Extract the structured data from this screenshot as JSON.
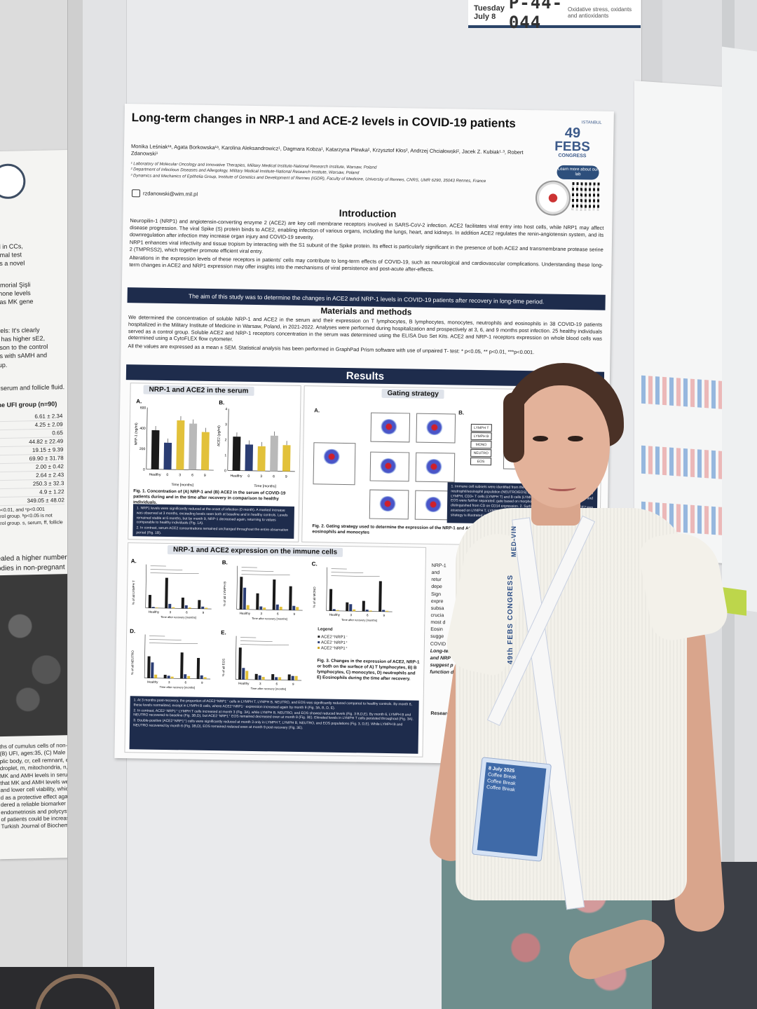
{
  "poster": {
    "title": "Long-term changes in NRP-1 and ACE-2 levels in COVID-19 patients",
    "authors": "Monika Leśniak¹ᵃ, Agata Borkowska¹ᵃ, Karolina Aleksandrowicz¹, Dagmara Kobza¹, Katarzyna Plewka², Krzysztof Kłos², Andrzej Chciałowski², Jacek Z. Kubiak¹·³, Robert Zdanowski¹",
    "affiliations": [
      "¹ Laboratory of Molecular Oncology and Innovative Therapies, Military Medical Institute-National Research Institute, Warsaw, Poland",
      "² Department of Infectious Diseases and Allergology, Military Medical Institute-National Research Institute, Warsaw, Poland",
      "³ Dynamics and Mechanics of Epithelia Group, Institute of Genetics and Development of Rennes (IGDR), Faculty of Medicine, University of Rennes, CNRS, UMR 6290, 35043 Rennes, France"
    ],
    "email": "rzdanowski@wim.mil.pl",
    "congress_num": "49",
    "congress_word": "FEBS",
    "congress_sub": "CONGRESS",
    "congress_city": "ISTANBUL",
    "learn_more": "Learn more about our lab",
    "intro_heading": "Introduction",
    "intro_p1": "Neuropilin-1 (NRP1) and angiotensin-converting enzyme 2 (ACE2) are key cell membrane receptors involved in SARS-CoV-2 infection. ACE2 facilitates viral entry into host cells, while NRP1 may affect disease progression. The viral Spike (S) protein binds to ACE2, enabling infection of various organs, including the lungs, heart, and kidneys. In addition ACE2 regulates the renin-angiotensin system, and its downregulation after infection may increase organ injury and COVID-19 severity.",
    "intro_p2": "NRP1 enhances viral infectivity and tissue tropism by interacting with the S1 subunit of the Spike protein. Its effect is particularly significant in the presence of both ACE2 and transmembrane protease serine 2 (TMPRSS2), which together promote efficient viral entry.",
    "intro_p3": "Alterations in the expression levels of these receptors in patients' cells may contribute to long-term effects of COVID-19, such as neurological and cardiovascular complications. Understanding these long-term changes in ACE2 and NRP1 expression may offer insights into the mechanisms of viral persistence and post-acute after-effects.",
    "aim": "The aim of this study was to determine the changes in ACE2 and NRP-1 levels in COVID-19 patients after recovery in long-time period.",
    "methods_heading": "Materials and methods",
    "methods_p1": "We determined the concentration of soluble NRP-1 and ACE2 in the serum and their expression on T lymphocytes, B lymphocytes, monocytes, neutrophils and eosinophils in 38 COVID-19 patients hospitalized in the Military Institute of Medicine in Warsaw, Poland, in 2021-2022. Analyses were performed during hospitalization and prospectively at 3, 6, and 9 months post infection. 25 healthy individuals served as a control group. Soluble ACE2 and NRP-1 receptors concentration in the serum was determined using the ELISA Duo Set Kits. ACE2 and NRP-1 receptors expression on whole blood cells was determined using a CytoFLEX flow cytometer.",
    "methods_p2": "All the values are expressed as a mean ± SEM. Statistical analysis has been performed in GraphPad Prism software with use of unpaired T- test: * p<0.05, ** p<0.01, ***p<0.001.",
    "results_heading": "Results",
    "serum_title": "NRP-1 and ACE2 in the serum",
    "serum_a": "A.",
    "serum_b": "B.",
    "serum_ylabel_a": "NRP-1 (ng/ml)",
    "serum_ylabel_b": "ACE2 (pg/ml)",
    "serum_xlabel": "Time [months]",
    "serum_ticks": [
      "Healthy",
      "0",
      "3",
      "6",
      "9"
    ],
    "serum_caption": "Fig. 1. Concentration of (A) NRP-1 and (B) ACE2 in the serum of COVID-19 patients during and in the time after recovery in comparison to healthy individuals.",
    "serum_note_1": "1. NRP1 levels were significantly reduced at the onset of infection (0 month). A marked increase was observed at 3 months, exceeding levels seen both at baseline and in healthy controls. Levels remained stable at 6 months, but by month 9, NRP-1 decreased again, returning to values comparable to healthy individuals (Fig. 1A).",
    "serum_note_2": "2. In contrast, serum ACE2 concentrations remained unchanged throughout the entire observation period (Fig. 1B).",
    "gating_title": "Gating strategy",
    "gating_a": "A.",
    "gating_b": "B.",
    "gating_chips": [
      "LYMPH T",
      "LYMPH B",
      "MONO",
      "NEUTRO",
      "EOS"
    ],
    "gating_caption": "Fig. 2. Gating strategy used to determine the expression of the NRP-1 and ACE2 on the surface of T cells, B cells, neutrophils, eosinophils and monocytes",
    "gating_note": "1. Immune cell subsets were identified from the CD45+ population, using a combined neutrophil/eosinophil population (NEUTRO/EOS) and expression and/or morphology. Within LYMPH, CD3+ T cells (LYMPH T) and B cells (LYMPH B) were distinguished; NEUTRO and EOS were further separated; gate based on morphology. Monocytes (MONO) were distinguished from CD on CD14 expression. 2. Surface expression of NRP-1 and ACE2 was assessed on LYMPH T, LYMPH B, MONO, NEUTRO and EOS populations. The full gating strategy is illustrated in Figure 2B.",
    "immune_title": "NRP-1 and ACE2 expression on the immune cells",
    "immune_panels": [
      "A.",
      "B.",
      "C.",
      "D.",
      "E."
    ],
    "immune_ylabels": [
      "% of all LYMPH T",
      "% of all LYMPH B",
      "% of all MONO",
      "% of all NEUTRO",
      "% of all EOS"
    ],
    "immune_xlabel": "Time after recovery [months]",
    "immune_ticks": [
      "Healthy",
      "3",
      "6",
      "9"
    ],
    "legend_title": "Legend",
    "legend_items": [
      "ACE2⁺NRP1⁻",
      "ACE2⁻NRP1⁺",
      "ACE2⁺NRP1⁺"
    ],
    "immune_caption": "Fig. 3. Changes in the expression of ACE2, NRP-1 or both on the surface of A) T lymphocytes, B) B lymphocytes, C) monocytes, D) neutrophils and E) Eosinophils during the time after recovery.",
    "immune_note_1": "1. At 3 months post-recovery, the proportion of ACE2⁺NRP1⁻ cells in LYMPH T, LYMPH B, NEUTRO, and EOS was significantly reduced compared to healthy controls. By month 6, these levels normalized, except in LYMPH B cells, where ACE2⁺NRP1⁻ expression increased again by month 9 (Fig. 3A, B, D, E).",
    "immune_note_2": "2. In contrast, ACE2⁻NRP1⁺ LYMPH T cells increased at month 3 (Fig. 3A), while LYMPH B, NEUTRO, and EOS showed reduced levels (Fig. 3 B,D,E). By month 6, LYMPH B and NEUTRO recovered to baseline (Fig. 3B,D), but ACE2⁻NRP1⁺ EOS remained decreased even at month 9 (Fig. 3E). Elevated levels in LYMPH T cells persisted throughout (Fig. 3A).",
    "immune_note_3": "3. Double-positive (ACE2⁺NRP1⁺) cells were significantly reduced at month 3 only in LYMPH T, LYMPH B, NEUTRO, and EOS populations (Fig. 3, D,E). While LYMPH B and NEUTRO recovered by month 6 (Fig. 3B,D), EOS remained reduced even at month 9 post-recovery (Fig. 3E).",
    "concl_fragments": [
      "NRP-1",
      "and",
      "retur",
      "depe",
      "Sign",
      "expre",
      "subsa",
      "crucia",
      "most d",
      "Eosin",
      "sugge",
      "COVID"
    ],
    "concl_bold": [
      "Long-ter",
      "and NRP",
      "suggest p",
      "function d"
    ],
    "research_label": "Research fun"
  },
  "board_label": {
    "day": "Tuesday",
    "date": "July 8",
    "code": "P-44-044",
    "topic": "Oxidative stress, oxidants and antioxidants"
  },
  "left_poster": {
    "lines_1": [
      "sed in CCs,",
      "normal test",
      "e as a novel"
    ],
    "lines_2": [
      "Memorial Şişli",
      "ormone levels",
      "ell as MK gene"
    ],
    "levels_label": "levels:",
    "lines_3": [
      "It's clearly",
      "up has higher sE2,",
      "arison to the control",
      "rels with sAMH and",
      "roup."
    ],
    "table_caption": "of serum and follicle fluid.",
    "table_header": "The UFI group (n=90)",
    "table_values": [
      "6.61 ± 2.34",
      "4.25 ± 2.09",
      "0.65",
      "44.82 ± 22.49",
      "19.15 ± 9.39",
      "69.90 ± 31.78",
      "2.00 ± 0.42",
      "2.64 ± 2.43",
      "250.3 ± 32.3",
      "4.9 ± 1.22",
      "349.05 ± 48.02"
    ],
    "table_foot": [
      "ᵇp<0.01, and ᶜp<0.001",
      "ntrol group. ᵇp<0.05 is not",
      "ntrol group. s, serum, ff, follicle"
    ],
    "lines_4": [
      "ealed a higher number",
      "odies in non-pregnant"
    ],
    "bottom_lines": [
      "ths of cumulus cells of non-",
      "(B) UFI, ages:35, (C) Male",
      "plic body, cr, cell remnant, er,",
      "droplet, m, mitochondria, n,",
      "MK and AMH levels in serum",
      "that MK and AMH levels were",
      "and lower cell viability, which",
      "d as a protective effect against",
      "dered a reliable biomarker for",
      "endometriosis and polycystic",
      "of patients could be increased.",
      "Turkish Journal of Biochemistry"
    ]
  },
  "badge": {
    "lanyard_text": "49th FEBS CONGRESS",
    "lanyard_text_2": "MED-VIN",
    "lines": [
      "8 July 2025",
      "Coffee Break",
      "Coffee Break",
      "Coffee Break"
    ]
  },
  "colors": {
    "navy_bar": "#1e2c4c",
    "febs_blue": "#3c5a8a",
    "bar_black": "#1a1a1a",
    "bar_navy": "#2b3d73",
    "bar_yellow": "#e2c13a"
  },
  "chart_serum_a": [
    {
      "label": "Healthy",
      "value": 380,
      "color": "#1a1a1a"
    },
    {
      "label": "0",
      "value": 260,
      "color": "#2b3d73"
    },
    {
      "label": "3",
      "value": 480,
      "color": "#e2c13a"
    },
    {
      "label": "6",
      "value": 450,
      "color": "#b9b9b9"
    },
    {
      "label": "9",
      "value": 370,
      "color": "#e2c13a"
    }
  ],
  "chart_serum_a_ylim": [
    0,
    600
  ],
  "chart_serum_a_ticks": [
    "0",
    "200",
    "400",
    "600"
  ],
  "chart_serum_b": [
    {
      "label": "Healthy",
      "value": 2.2,
      "color": "#1a1a1a"
    },
    {
      "label": "0",
      "value": 1.7,
      "color": "#2b3d73"
    },
    {
      "label": "3",
      "value": 1.6,
      "color": "#e2c13a"
    },
    {
      "label": "6",
      "value": 2.3,
      "color": "#b9b9b9"
    },
    {
      "label": "9",
      "value": 1.7,
      "color": "#e2c13a"
    }
  ],
  "chart_serum_b_ylim": [
    0,
    4
  ],
  "chart_serum_b_ticks": [
    "0",
    "1",
    "2",
    "3",
    "4"
  ],
  "chart_immune": [
    {
      "id": "A",
      "max": 40,
      "groups": [
        [
          12,
          1,
          0.5
        ],
        [
          28,
          4,
          1
        ],
        [
          10,
          3,
          1
        ],
        [
          8,
          2,
          1
        ]
      ]
    },
    {
      "id": "B",
      "max": 40,
      "groups": [
        [
          30,
          20,
          4
        ],
        [
          15,
          3,
          2
        ],
        [
          28,
          5,
          3
        ],
        [
          22,
          4,
          3
        ]
      ]
    },
    {
      "id": "C",
      "max": 50,
      "groups": [
        [
          25,
          2,
          1
        ],
        [
          10,
          8,
          2
        ],
        [
          12,
          2,
          1
        ],
        [
          35,
          2,
          1
        ]
      ]
    },
    {
      "id": "D",
      "max": 50,
      "groups": [
        [
          25,
          18,
          4
        ],
        [
          4,
          3,
          2
        ],
        [
          30,
          5,
          3
        ],
        [
          24,
          4,
          2
        ]
      ]
    },
    {
      "id": "E",
      "max": 30,
      "groups": [
        [
          22,
          8,
          6
        ],
        [
          4,
          3,
          2
        ],
        [
          4,
          2,
          2
        ],
        [
          4,
          3,
          3
        ]
      ]
    }
  ]
}
